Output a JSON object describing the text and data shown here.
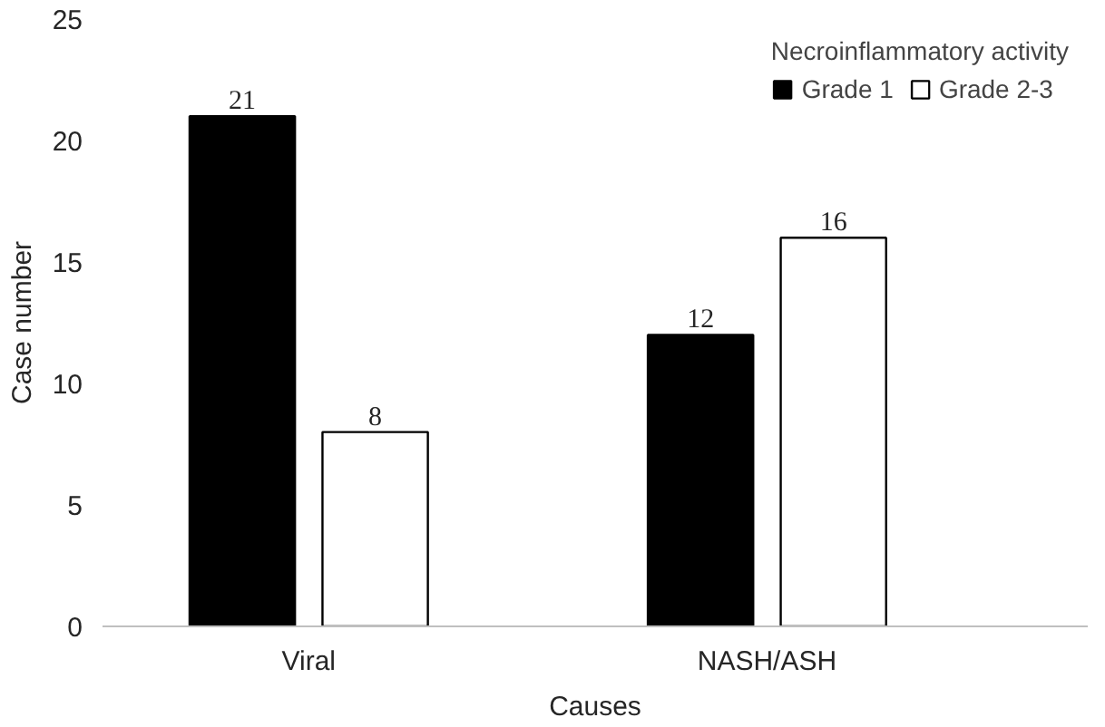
{
  "chart_data": {
    "type": "bar",
    "xlabel": "Causes",
    "ylabel": "Case number",
    "legend_title": "Necroinflammatory activity",
    "categories": [
      "Viral",
      "NASH/ASH"
    ],
    "series": [
      {
        "name": "Grade 1",
        "color": "#000000",
        "values": [
          21,
          12
        ]
      },
      {
        "name": "Grade 2-3",
        "color": "#ffffff",
        "values": [
          8,
          16
        ]
      }
    ],
    "ylim": [
      0,
      25
    ],
    "yticks": [
      0,
      5,
      10,
      15,
      20,
      25
    ],
    "grid": false,
    "legend": "top right",
    "data_labels": true
  }
}
